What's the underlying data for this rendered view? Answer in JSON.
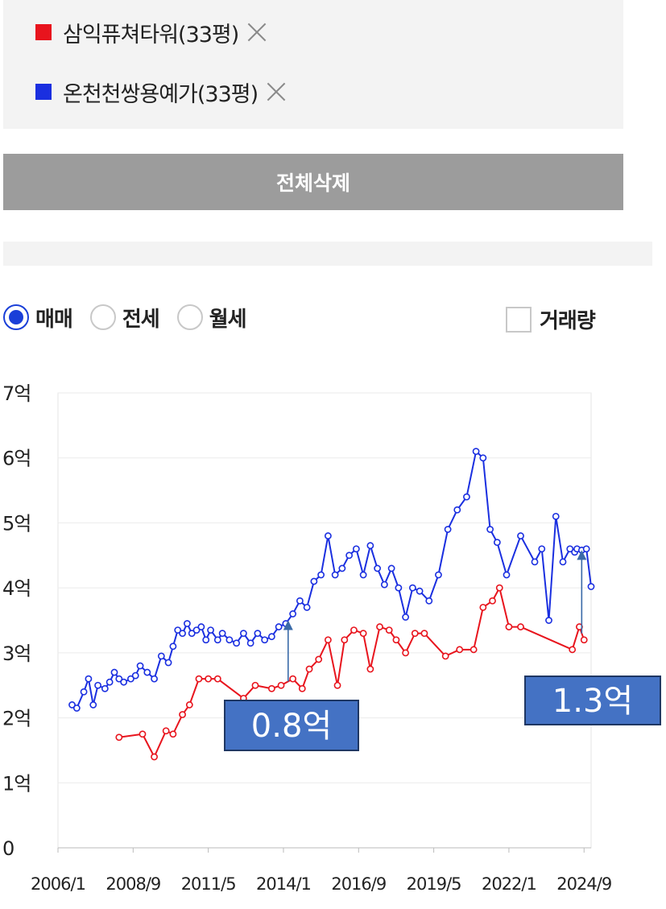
{
  "legend": {
    "items": [
      {
        "label": "삼익퓨쳐타워(33평)",
        "color": "#e8141d"
      },
      {
        "label": "온천천쌍용예가(33평)",
        "color": "#1a2fe0"
      }
    ]
  },
  "delete_all_label": "전체삭제",
  "trade_type": {
    "options": [
      "매매",
      "전세",
      "월세"
    ],
    "selected": "매매"
  },
  "volume_label": "거래량",
  "chart_data": {
    "type": "line",
    "x_tick_labels": [
      "2006/1",
      "2008/9",
      "2011/5",
      "2014/1",
      "2016/9",
      "2019/5",
      "2022/1",
      "2024/9"
    ],
    "x_range": [
      "2006/1",
      "2024/12"
    ],
    "y_tick_labels": [
      "0",
      "1억",
      "2억",
      "3억",
      "4억",
      "5억",
      "6억",
      "7억"
    ],
    "ylim": [
      0,
      7
    ],
    "grid": true,
    "series": [
      {
        "name": "온천천쌍용예가(33평)",
        "color": "#1a2fe0",
        "x": [
          "2006/7",
          "2006/9",
          "2006/12",
          "2007/2",
          "2007/4",
          "2007/6",
          "2007/9",
          "2007/11",
          "2008/1",
          "2008/3",
          "2008/5",
          "2008/8",
          "2008/10",
          "2008/12",
          "2009/3",
          "2009/6",
          "2009/9",
          "2009/12",
          "2010/2",
          "2010/4",
          "2010/6",
          "2010/8",
          "2010/10",
          "2010/12",
          "2011/2",
          "2011/4",
          "2011/6",
          "2011/9",
          "2011/11",
          "2012/2",
          "2012/5",
          "2012/8",
          "2012/11",
          "2013/2",
          "2013/5",
          "2013/8",
          "2013/11",
          "2014/2",
          "2014/5",
          "2014/8",
          "2014/11",
          "2015/2",
          "2015/5",
          "2015/8",
          "2015/11",
          "2016/2",
          "2016/5",
          "2016/8",
          "2016/11",
          "2017/2",
          "2017/5",
          "2017/8",
          "2017/11",
          "2018/2",
          "2018/5",
          "2018/8",
          "2018/11",
          "2019/3",
          "2019/7",
          "2019/11",
          "2020/3",
          "2020/7",
          "2020/11",
          "2021/2",
          "2021/5",
          "2021/8",
          "2021/12",
          "2022/6",
          "2022/12",
          "2023/3",
          "2023/6",
          "2023/9",
          "2023/12",
          "2024/3",
          "2024/5",
          "2024/6",
          "2024/8",
          "2024/10",
          "2024/12"
        ],
        "values": [
          2.2,
          2.15,
          2.4,
          2.6,
          2.2,
          2.5,
          2.45,
          2.55,
          2.7,
          2.6,
          2.55,
          2.6,
          2.65,
          2.8,
          2.7,
          2.6,
          2.95,
          2.85,
          3.1,
          3.35,
          3.3,
          3.45,
          3.3,
          3.35,
          3.4,
          3.2,
          3.35,
          3.2,
          3.3,
          3.2,
          3.15,
          3.3,
          3.15,
          3.3,
          3.2,
          3.25,
          3.4,
          3.45,
          3.6,
          3.8,
          3.7,
          4.1,
          4.2,
          4.8,
          4.2,
          4.3,
          4.5,
          4.6,
          4.2,
          4.65,
          4.3,
          4.05,
          4.3,
          4.0,
          3.55,
          4.0,
          3.95,
          3.8,
          4.2,
          4.9,
          5.2,
          5.4,
          6.1,
          6.0,
          4.9,
          4.7,
          4.2,
          4.8,
          4.4,
          4.6,
          3.5,
          5.1,
          4.4,
          4.6,
          4.55,
          4.6,
          4.58,
          4.6,
          4.02
        ]
      },
      {
        "name": "삼익퓨쳐타워(33평)",
        "color": "#e8141d",
        "x": [
          "2008/3",
          "2009/1",
          "2009/6",
          "2009/11",
          "2010/2",
          "2010/6",
          "2010/9",
          "2011/1",
          "2011/5",
          "2011/9",
          "2012/8",
          "2013/1",
          "2013/8",
          "2013/12",
          "2014/5",
          "2014/9",
          "2014/12",
          "2015/4",
          "2015/8",
          "2015/12",
          "2016/3",
          "2016/7",
          "2016/11",
          "2017/2",
          "2017/6",
          "2017/10",
          "2018/1",
          "2018/5",
          "2018/9",
          "2019/1",
          "2019/10",
          "2020/4",
          "2020/10",
          "2021/2",
          "2021/6",
          "2021/9",
          "2022/1",
          "2022/6",
          "2024/4",
          "2024/7",
          "2024/9"
        ],
        "values": [
          1.7,
          1.75,
          1.4,
          1.8,
          1.75,
          2.05,
          2.2,
          2.6,
          2.6,
          2.6,
          2.3,
          2.5,
          2.45,
          2.5,
          2.6,
          2.45,
          2.75,
          2.9,
          3.2,
          2.5,
          3.2,
          3.35,
          3.3,
          2.75,
          3.4,
          3.35,
          3.2,
          3.0,
          3.3,
          3.3,
          2.95,
          3.05,
          3.05,
          3.7,
          3.8,
          4.0,
          3.4,
          3.4,
          3.05,
          3.4,
          3.2
        ]
      }
    ],
    "annotations": [
      {
        "text": "0.8억",
        "x": "2014/3"
      },
      {
        "text": "1.3억",
        "x": "2024/8"
      }
    ]
  }
}
